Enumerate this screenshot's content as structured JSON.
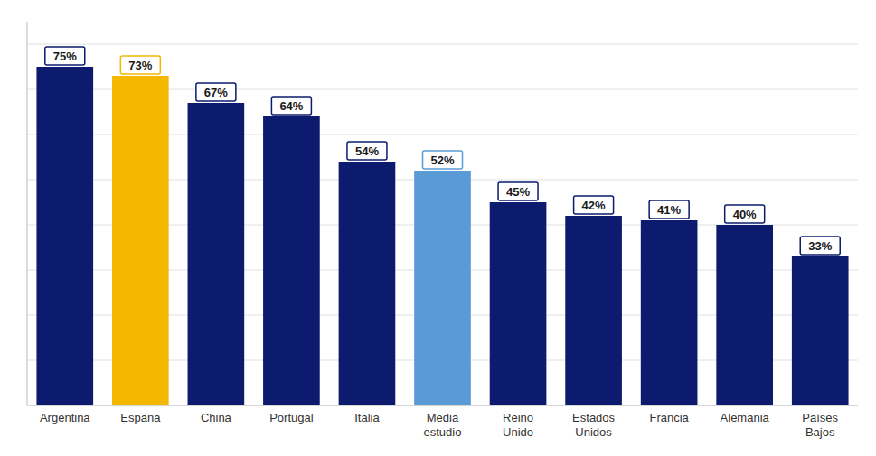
{
  "chart_data": {
    "type": "bar",
    "categories": [
      "Argentina",
      "España",
      "China",
      "Portugal",
      "Italia",
      "Media\nestudio",
      "Reino\nUnido",
      "Estados\nUnidos",
      "Francia",
      "Alemania",
      "Países\nBajos"
    ],
    "values": [
      75,
      73,
      67,
      64,
      54,
      52,
      45,
      42,
      41,
      40,
      33
    ],
    "value_labels": [
      "75%",
      "73%",
      "67%",
      "64%",
      "54%",
      "52%",
      "45%",
      "42%",
      "41%",
      "40%",
      "33%"
    ],
    "colors": [
      "#0d1b6e",
      "#f5b800",
      "#0d1b6e",
      "#0d1b6e",
      "#0d1b6e",
      "#5b9bd5",
      "#0d1b6e",
      "#0d1b6e",
      "#0d1b6e",
      "#0d1b6e",
      "#0d1b6e"
    ],
    "ylim": [
      0,
      85
    ],
    "yticks": [
      0,
      10,
      20,
      30,
      40,
      50,
      60,
      70,
      80
    ],
    "grid": true,
    "data_labels": true,
    "tick_labels": "x"
  }
}
